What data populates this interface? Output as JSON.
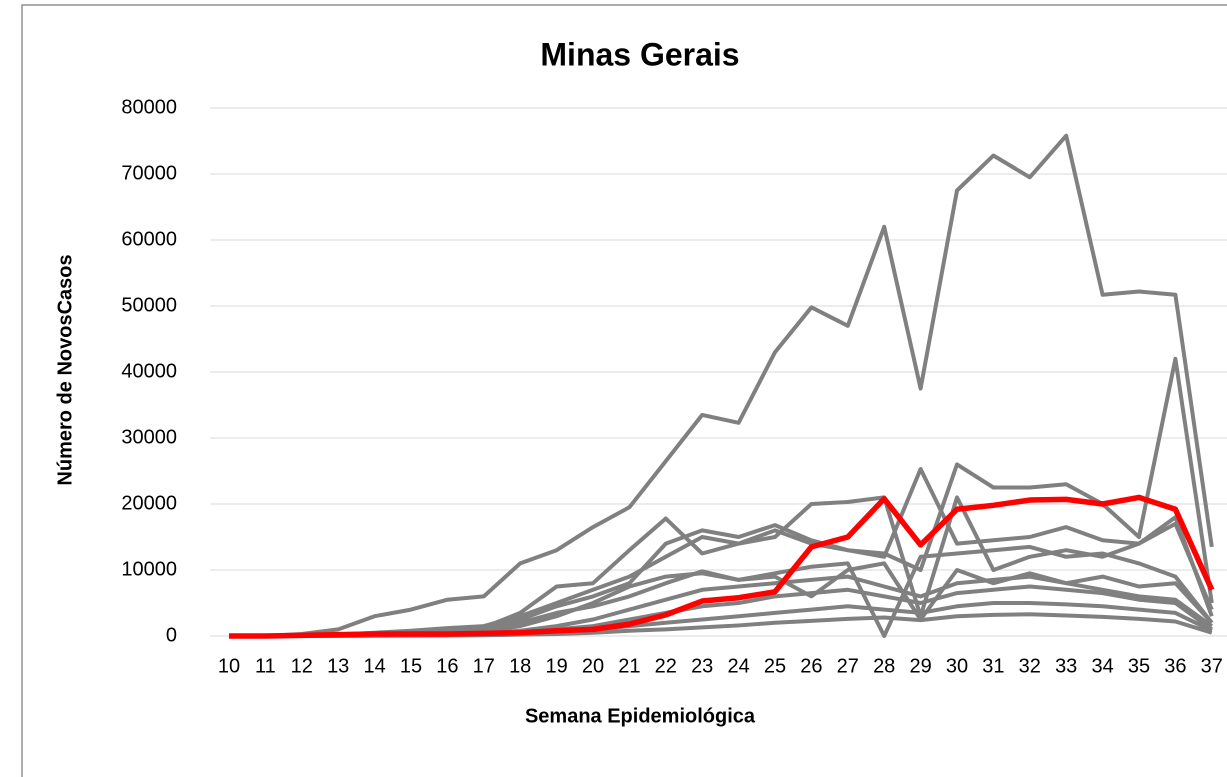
{
  "chart_data": {
    "type": "line",
    "title": "Minas Gerais",
    "xlabel": "Semana Epidemiológica",
    "ylabel": "Número de NovosCasos",
    "categories": [
      "10",
      "11",
      "12",
      "13",
      "14",
      "15",
      "16",
      "17",
      "18",
      "19",
      "20",
      "21",
      "22",
      "23",
      "24",
      "25",
      "26",
      "27",
      "28",
      "29",
      "30",
      "31",
      "32",
      "33",
      "34",
      "35",
      "36",
      "37"
    ],
    "ylim": [
      0,
      80000
    ],
    "yticks": [
      0,
      10000,
      20000,
      30000,
      40000,
      50000,
      60000,
      70000,
      80000
    ],
    "grid": true,
    "series": [
      {
        "color": "#808080",
        "values": [
          0,
          0,
          300,
          1000,
          3000,
          4000,
          5500,
          6000,
          11000,
          13000,
          16500,
          19500,
          26500,
          33500,
          32300,
          43000,
          49800,
          47000,
          62000,
          37500,
          67500,
          72800,
          69500,
          75800,
          51700,
          52200,
          51700,
          13500
        ]
      },
      {
        "color": "#808080",
        "values": [
          0,
          0,
          100,
          200,
          500,
          800,
          1200,
          1500,
          3000,
          5000,
          7000,
          9000,
          12000,
          15000,
          14000,
          16000,
          14000,
          13000,
          12500,
          10000,
          26000,
          22500,
          22500,
          23000,
          20000,
          15000,
          42000,
          5000
        ]
      },
      {
        "color": "#808080",
        "values": [
          0,
          0,
          100,
          200,
          400,
          700,
          1000,
          1300,
          3500,
          7500,
          8000,
          13000,
          17800,
          12500,
          14000,
          15000,
          20000,
          20300,
          21000,
          3000,
          21000,
          10000,
          12000,
          13000,
          12000,
          14000,
          18000,
          3000
        ]
      },
      {
        "color": "#808080",
        "values": [
          0,
          0,
          50,
          100,
          300,
          500,
          800,
          1000,
          2500,
          4500,
          6000,
          8000,
          14000,
          16000,
          15000,
          16800,
          14500,
          13000,
          12000,
          25300,
          14000,
          14500,
          15000,
          16500,
          14500,
          14000,
          17000,
          4000
        ]
      },
      {
        "color": "#808080",
        "values": [
          0,
          0,
          50,
          100,
          200,
          300,
          500,
          700,
          1500,
          3000,
          5000,
          7500,
          9000,
          9500,
          8500,
          9500,
          10500,
          11000,
          0,
          12000,
          12500,
          13000,
          13500,
          12000,
          12500,
          11000,
          9000,
          2000
        ]
      },
      {
        "color": "#808080",
        "values": [
          0,
          0,
          20,
          50,
          100,
          200,
          300,
          400,
          800,
          1500,
          2500,
          4000,
          5500,
          7000,
          7500,
          8000,
          8500,
          9000,
          7500,
          6000,
          8000,
          8500,
          9000,
          8000,
          7000,
          6000,
          5500,
          1500
        ]
      },
      {
        "color": "#808080",
        "values": [
          0,
          0,
          10,
          30,
          80,
          150,
          250,
          350,
          600,
          1000,
          1500,
          2500,
          3500,
          4500,
          5000,
          6000,
          6500,
          7000,
          6000,
          5000,
          6500,
          7000,
          7500,
          7000,
          6500,
          5500,
          5000,
          1000
        ]
      },
      {
        "color": "#808080",
        "values": [
          0,
          0,
          10,
          20,
          50,
          100,
          150,
          200,
          400,
          600,
          900,
          1500,
          2000,
          2500,
          3000,
          3500,
          4000,
          4500,
          4000,
          3500,
          4500,
          5000,
          5000,
          4800,
          4500,
          4000,
          3500,
          800
        ]
      },
      {
        "color": "#808080",
        "values": [
          0,
          0,
          5,
          10,
          30,
          50,
          80,
          120,
          200,
          300,
          500,
          800,
          1000,
          1300,
          1600,
          2000,
          2300,
          2600,
          2800,
          2400,
          3000,
          3200,
          3300,
          3100,
          2900,
          2600,
          2200,
          500
        ]
      },
      {
        "color": "#808080",
        "values": [
          0,
          0,
          50,
          100,
          200,
          400,
          600,
          800,
          2000,
          3500,
          4500,
          6000,
          8000,
          9800,
          8500,
          9000,
          6000,
          10000,
          11000,
          2500,
          10000,
          8000,
          9500,
          8000,
          9000,
          7500,
          8000,
          2000
        ]
      },
      {
        "color": "#ff0000",
        "values": [
          0,
          0,
          100,
          200,
          300,
          300,
          300,
          400,
          500,
          800,
          1000,
          1800,
          3200,
          5300,
          5800,
          6700,
          13500,
          15000,
          20800,
          13800,
          19200,
          19800,
          20600,
          20700,
          20000,
          21000,
          19200,
          7000
        ]
      }
    ]
  }
}
